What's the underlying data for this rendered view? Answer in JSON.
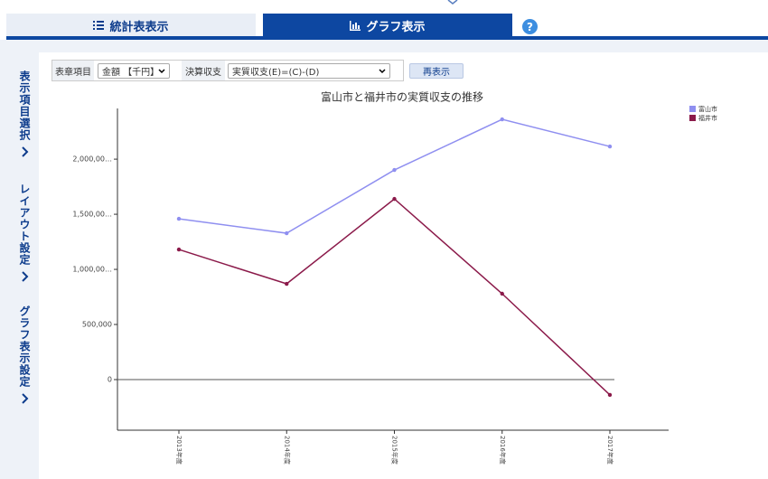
{
  "ui": {
    "tabs": [
      "統計表表示",
      "グラフ表示"
    ],
    "help": "?",
    "side_tabs": [
      "表示項目選択",
      "レイアウト設定",
      "グラフ表示設定"
    ],
    "controls": {
      "item_label": "表章項目",
      "item_value": "金額 【千円】",
      "settle_label": "決算収支",
      "settle_value": "実質収支(E)=(C)-(D)",
      "button": "再表示"
    }
  },
  "chart_data": {
    "type": "line",
    "title": "富山市と福井市の実質収支の推移",
    "categories": [
      "2013年度",
      "2014年度",
      "2015年度",
      "2016年度",
      "2017年度"
    ],
    "series": [
      {
        "name": "富山市",
        "color": "#8f8ff0",
        "values": [
          1459000,
          1328000,
          1902000,
          2361000,
          2115000
        ]
      },
      {
        "name": "福井市",
        "color": "#8b1a4a",
        "values": [
          1180000,
          869000,
          1639000,
          779000,
          -139000
        ]
      }
    ],
    "ylim": [
      -410000,
      2460000
    ],
    "yticks": [
      0,
      {
        "value": 500000,
        "label": "500,000"
      },
      {
        "value": 1000000,
        "label": "1,000,00…"
      },
      {
        "value": 1500000,
        "label": "1,500,00…"
      },
      {
        "value": 2000000,
        "label": "2,000,00…"
      }
    ],
    "legend": "upper right"
  }
}
